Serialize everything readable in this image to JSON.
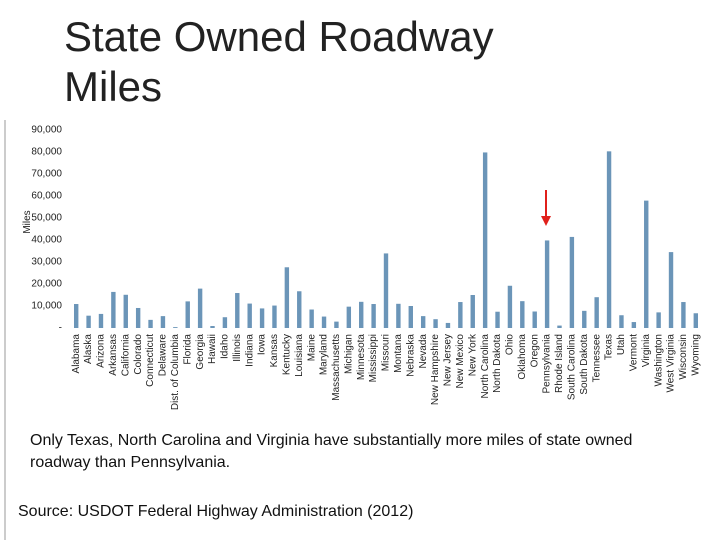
{
  "chart_data": {
    "type": "bar",
    "title": "State Owned Roadway Miles",
    "y_label": "Miles",
    "annotation": "Only Texas, North Carolina and Virginia have substantially more miles of state owned roadway than Pennsylvania.",
    "source": "Source: USDOT Federal Highway Administration (2012)",
    "categories": [
      "Alabama",
      "Alaska",
      "Arizona",
      "Arkansas",
      "California",
      "Colorado",
      "Connecticut",
      "Delaware",
      "Dist. of Columbia",
      "Florida",
      "Georgia",
      "Hawaii",
      "Idaho",
      "Illinois",
      "Indiana",
      "Iowa",
      "Kansas",
      "Kentucky",
      "Louisiana",
      "Maine",
      "Maryland",
      "Massachusetts",
      "Michigan",
      "Minnesota",
      "Mississippi",
      "Missouri",
      "Montana",
      "Nebraska",
      "Nevada",
      "New Hampshire",
      "New Jersey",
      "New Mexico",
      "New York",
      "North Carolina",
      "North Dakota",
      "Ohio",
      "Oklahoma",
      "Oregon",
      "Pennsylvania",
      "Rhode Island",
      "South Carolina",
      "South Dakota",
      "Tennessee",
      "Texas",
      "Utah",
      "Vermont",
      "Virginia",
      "Washington",
      "West Virginia",
      "Wisconsin",
      "Wyoming"
    ],
    "values": [
      10900,
      5600,
      6400,
      16400,
      15100,
      9100,
      3700,
      5400,
      400,
      12100,
      17900,
      900,
      4900,
      15900,
      11100,
      8900,
      10200,
      27600,
      16700,
      8400,
      5200,
      2900,
      9700,
      11900,
      10900,
      33900,
      11000,
      10000,
      5400,
      4000,
      2300,
      11800,
      15000,
      79800,
      7400,
      19200,
      12200,
      7500,
      39800,
      1100,
      41400,
      7800,
      14000,
      80300,
      5800,
      2700,
      57900,
      7100,
      34500,
      11800,
      6700
    ],
    "color": "#6b95b8",
    "ylim": [
      0,
      90000
    ],
    "yticks": [
      {
        "value": 0,
        "label": "-"
      },
      {
        "value": 10000,
        "label": "10,000"
      },
      {
        "value": 20000,
        "label": "20,000"
      },
      {
        "value": 30000,
        "label": "30,000"
      },
      {
        "value": 40000,
        "label": "40,000"
      },
      {
        "value": 50000,
        "label": "50,000"
      },
      {
        "value": 60000,
        "label": "60,000"
      },
      {
        "value": 70000,
        "label": "70,000"
      },
      {
        "value": 80000,
        "label": "80,000"
      },
      {
        "value": 90000,
        "label": "90,000"
      }
    ]
  }
}
